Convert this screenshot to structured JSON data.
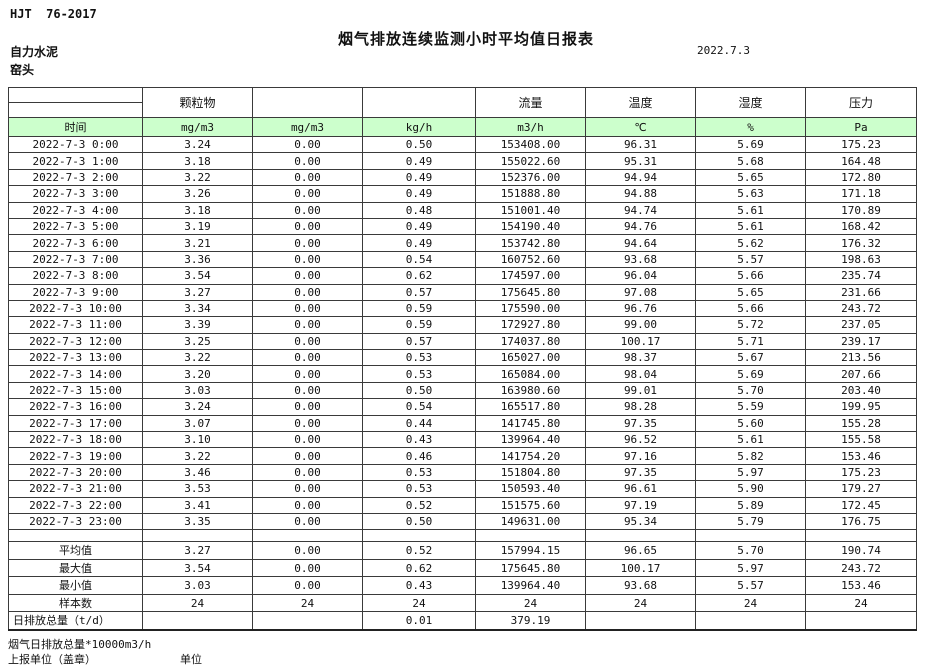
{
  "header": {
    "standard": "HJT  76-2017",
    "title": "烟气排放连续监测小时平均值日报表",
    "company": "自力水泥",
    "source": "窑头",
    "date": "2022.7.3"
  },
  "table": {
    "time_label": "时间",
    "pollutant_headers": [
      "",
      "颗粒物",
      "",
      "",
      "流量",
      "温度",
      "湿度",
      "压力"
    ],
    "units": [
      "mg/m3",
      "mg/m3",
      "kg/h",
      "m3/h",
      "℃",
      "%",
      "Pa"
    ],
    "rows": [
      {
        "time": "2022-7-3 0:00",
        "values": [
          "3.24",
          "0.00",
          "0.50",
          "153408.00",
          "96.31",
          "5.69",
          "175.23"
        ]
      },
      {
        "time": "2022-7-3 1:00",
        "values": [
          "3.18",
          "0.00",
          "0.49",
          "155022.60",
          "95.31",
          "5.68",
          "164.48"
        ]
      },
      {
        "time": "2022-7-3 2:00",
        "values": [
          "3.22",
          "0.00",
          "0.49",
          "152376.00",
          "94.94",
          "5.65",
          "172.80"
        ]
      },
      {
        "time": "2022-7-3 3:00",
        "values": [
          "3.26",
          "0.00",
          "0.49",
          "151888.80",
          "94.88",
          "5.63",
          "171.18"
        ]
      },
      {
        "time": "2022-7-3 4:00",
        "values": [
          "3.18",
          "0.00",
          "0.48",
          "151001.40",
          "94.74",
          "5.61",
          "170.89"
        ]
      },
      {
        "time": "2022-7-3 5:00",
        "values": [
          "3.19",
          "0.00",
          "0.49",
          "154190.40",
          "94.76",
          "5.61",
          "168.42"
        ]
      },
      {
        "time": "2022-7-3 6:00",
        "values": [
          "3.21",
          "0.00",
          "0.49",
          "153742.80",
          "94.64",
          "5.62",
          "176.32"
        ]
      },
      {
        "time": "2022-7-3 7:00",
        "values": [
          "3.36",
          "0.00",
          "0.54",
          "160752.60",
          "93.68",
          "5.57",
          "198.63"
        ]
      },
      {
        "time": "2022-7-3 8:00",
        "values": [
          "3.54",
          "0.00",
          "0.62",
          "174597.00",
          "96.04",
          "5.66",
          "235.74"
        ]
      },
      {
        "time": "2022-7-3 9:00",
        "values": [
          "3.27",
          "0.00",
          "0.57",
          "175645.80",
          "97.08",
          "5.65",
          "231.66"
        ]
      },
      {
        "time": "2022-7-3 10:00",
        "values": [
          "3.34",
          "0.00",
          "0.59",
          "175590.00",
          "96.76",
          "5.66",
          "243.72"
        ]
      },
      {
        "time": "2022-7-3 11:00",
        "values": [
          "3.39",
          "0.00",
          "0.59",
          "172927.80",
          "99.00",
          "5.72",
          "237.05"
        ]
      },
      {
        "time": "2022-7-3 12:00",
        "values": [
          "3.25",
          "0.00",
          "0.57",
          "174037.80",
          "100.17",
          "5.71",
          "239.17"
        ]
      },
      {
        "time": "2022-7-3 13:00",
        "values": [
          "3.22",
          "0.00",
          "0.53",
          "165027.00",
          "98.37",
          "5.67",
          "213.56"
        ]
      },
      {
        "time": "2022-7-3 14:00",
        "values": [
          "3.20",
          "0.00",
          "0.53",
          "165084.00",
          "98.04",
          "5.69",
          "207.66"
        ]
      },
      {
        "time": "2022-7-3 15:00",
        "values": [
          "3.03",
          "0.00",
          "0.50",
          "163980.60",
          "99.01",
          "5.70",
          "203.40"
        ]
      },
      {
        "time": "2022-7-3 16:00",
        "values": [
          "3.24",
          "0.00",
          "0.54",
          "165517.80",
          "98.28",
          "5.59",
          "199.95"
        ]
      },
      {
        "time": "2022-7-3 17:00",
        "values": [
          "3.07",
          "0.00",
          "0.44",
          "141745.80",
          "97.35",
          "5.60",
          "155.28"
        ]
      },
      {
        "time": "2022-7-3 18:00",
        "values": [
          "3.10",
          "0.00",
          "0.43",
          "139964.40",
          "96.52",
          "5.61",
          "155.58"
        ]
      },
      {
        "time": "2022-7-3 19:00",
        "values": [
          "3.22",
          "0.00",
          "0.46",
          "141754.20",
          "97.16",
          "5.82",
          "153.46"
        ]
      },
      {
        "time": "2022-7-3 20:00",
        "values": [
          "3.46",
          "0.00",
          "0.53",
          "151804.80",
          "97.35",
          "5.97",
          "175.23"
        ]
      },
      {
        "time": "2022-7-3 21:00",
        "values": [
          "3.53",
          "0.00",
          "0.53",
          "150593.40",
          "96.61",
          "5.90",
          "179.27"
        ]
      },
      {
        "time": "2022-7-3 22:00",
        "values": [
          "3.41",
          "0.00",
          "0.52",
          "151575.60",
          "97.19",
          "5.89",
          "172.45"
        ]
      },
      {
        "time": "2022-7-3 23:00",
        "values": [
          "3.35",
          "0.00",
          "0.50",
          "149631.00",
          "95.34",
          "5.79",
          "176.75"
        ]
      }
    ],
    "summary": [
      {
        "label": "平均值",
        "values": [
          "3.27",
          "0.00",
          "0.52",
          "157994.15",
          "96.65",
          "5.70",
          "190.74"
        ]
      },
      {
        "label": "最大值",
        "values": [
          "3.54",
          "0.00",
          "0.62",
          "175645.80",
          "100.17",
          "5.97",
          "243.72"
        ]
      },
      {
        "label": "最小值",
        "values": [
          "3.03",
          "0.00",
          "0.43",
          "139964.40",
          "93.68",
          "5.57",
          "153.46"
        ]
      },
      {
        "label": "样本数",
        "values": [
          "24",
          "24",
          "24",
          "24",
          "24",
          "24",
          "24"
        ]
      },
      {
        "label": "日排放总量（t/d）",
        "values": [
          "",
          "",
          "0.01",
          "379.19",
          "",
          "",
          ""
        ]
      }
    ]
  },
  "footer": {
    "note": "烟气日排放总量*10000m3/h",
    "report_unit_label": "上报单位（盖章）",
    "unit_label": "单位"
  },
  "colors": {
    "unit_row_bg": "#ccffcc",
    "border": "#3a3a3a"
  }
}
